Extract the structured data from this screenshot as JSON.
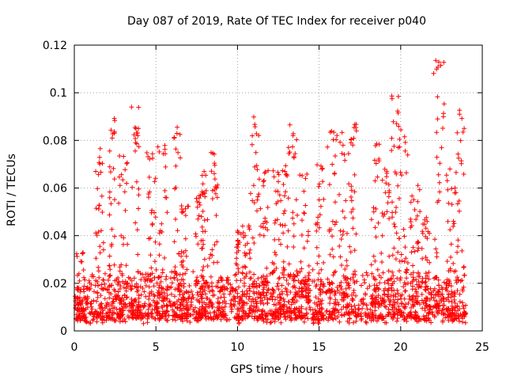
{
  "chart_data": {
    "type": "scatter",
    "title": "Day 087 of 2019, Rate Of TEC Index for receiver p040",
    "xlabel": "GPS time / hours",
    "ylabel": "ROTI / TECUs",
    "xlim": [
      0,
      25
    ],
    "ylim": [
      0,
      0.12
    ],
    "x_ticks": [
      0,
      5,
      10,
      15,
      20,
      25
    ],
    "x_tick_labels": [
      "0",
      "5",
      "10",
      "15",
      "20",
      "25"
    ],
    "y_ticks": [
      0,
      0.02,
      0.04,
      0.06,
      0.08,
      0.1,
      0.12
    ],
    "y_tick_labels": [
      "0",
      "0.02",
      "0.04",
      "0.06",
      "0.08",
      "0.1",
      "0.12"
    ],
    "grid": true,
    "marker": "plus",
    "marker_color": "#ff0000",
    "baseline_band": [
      0.003,
      0.022
    ],
    "activity_blocks": [
      {
        "x0": 0.1,
        "x1": 0.6,
        "peak": 0.033
      },
      {
        "x0": 1.3,
        "x1": 1.8,
        "peak": 0.079
      },
      {
        "x0": 2.1,
        "x1": 2.5,
        "peak": 0.096
      },
      {
        "x0": 2.7,
        "x1": 3.3,
        "peak": 0.076
      },
      {
        "x0": 3.5,
        "x1": 4.0,
        "peak": 0.095
      },
      {
        "x0": 4.4,
        "x1": 5.0,
        "peak": 0.075
      },
      {
        "x0": 5.1,
        "x1": 5.7,
        "peak": 0.079
      },
      {
        "x0": 6.1,
        "x1": 6.5,
        "peak": 0.088
      },
      {
        "x0": 6.5,
        "x1": 7.0,
        "peak": 0.054
      },
      {
        "x0": 7.4,
        "x1": 7.9,
        "peak": 0.058
      },
      {
        "x0": 7.8,
        "x1": 8.3,
        "peak": 0.067
      },
      {
        "x0": 8.3,
        "x1": 8.8,
        "peak": 0.075
      },
      {
        "x0": 9.9,
        "x1": 10.4,
        "peak": 0.042
      },
      {
        "x0": 10.3,
        "x1": 10.8,
        "peak": 0.045
      },
      {
        "x0": 10.8,
        "x1": 11.3,
        "peak": 0.09
      },
      {
        "x0": 11.3,
        "x1": 11.9,
        "peak": 0.068
      },
      {
        "x0": 12.1,
        "x1": 12.6,
        "peak": 0.07
      },
      {
        "x0": 12.6,
        "x1": 13.1,
        "peak": 0.072
      },
      {
        "x0": 13.1,
        "x1": 13.7,
        "peak": 0.087
      },
      {
        "x0": 13.8,
        "x1": 14.4,
        "peak": 0.066
      },
      {
        "x0": 14.8,
        "x1": 15.3,
        "peak": 0.07
      },
      {
        "x0": 15.5,
        "x1": 16.1,
        "peak": 0.084
      },
      {
        "x0": 16.2,
        "x1": 16.8,
        "peak": 0.085
      },
      {
        "x0": 16.8,
        "x1": 17.3,
        "peak": 0.087
      },
      {
        "x0": 18.2,
        "x1": 18.7,
        "peak": 0.082
      },
      {
        "x0": 18.8,
        "x1": 19.3,
        "peak": 0.068
      },
      {
        "x0": 19.4,
        "x1": 19.9,
        "peak": 0.101
      },
      {
        "x0": 19.9,
        "x1": 20.5,
        "peak": 0.085
      },
      {
        "x0": 20.6,
        "x1": 21.2,
        "peak": 0.062
      },
      {
        "x0": 21.3,
        "x1": 21.8,
        "peak": 0.048
      },
      {
        "x0": 22.0,
        "x1": 22.7,
        "peak": 0.117
      },
      {
        "x0": 22.8,
        "x1": 23.4,
        "peak": 0.068
      },
      {
        "x0": 23.4,
        "x1": 23.9,
        "peak": 0.094
      }
    ]
  }
}
